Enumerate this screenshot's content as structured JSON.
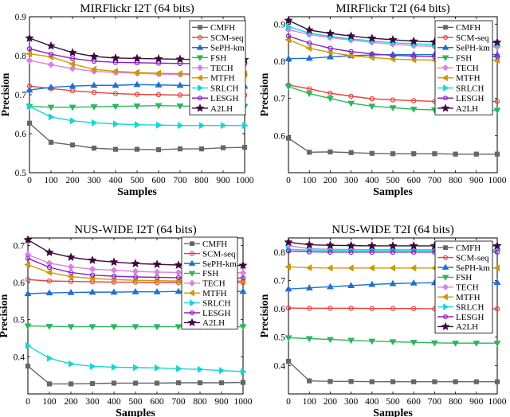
{
  "series_styles": [
    {
      "name": "CMFH",
      "color": "#666666",
      "marker": "square"
    },
    {
      "name": "SCM-seq",
      "color": "#e8413c",
      "marker": "circle"
    },
    {
      "name": "SePH-km",
      "color": "#1f6fd1",
      "marker": "triangle-up"
    },
    {
      "name": "FSH",
      "color": "#2db55d",
      "marker": "triangle-down"
    },
    {
      "name": "TECH",
      "color": "#d783e0",
      "marker": "diamond"
    },
    {
      "name": "MTFH",
      "color": "#cc9a06",
      "marker": "triangle-left"
    },
    {
      "name": "SRLCH",
      "color": "#15d6d6",
      "marker": "triangle-right"
    },
    {
      "name": "LESGH",
      "color": "#8a20c8",
      "marker": "circle"
    },
    {
      "name": "A2LH",
      "color": "#3c0a3c",
      "marker": "star"
    }
  ],
  "chart_data": [
    {
      "type": "line",
      "title": "MIRFlickr I2T (64 bits)",
      "xlabel": "Samples",
      "ylabel": "Precision",
      "x": [
        0,
        100,
        200,
        300,
        400,
        500,
        600,
        700,
        800,
        900,
        1000
      ],
      "xticks": [
        "0",
        "100",
        "200",
        "300",
        "400",
        "500",
        "600",
        "700",
        "800",
        "900",
        "1000"
      ],
      "ylim": [
        0.5,
        0.9
      ],
      "yticks": [
        "0.5",
        "0.6",
        "0.7",
        "0.8",
        "0.9"
      ],
      "legend": "top-right",
      "series": [
        {
          "name": "CMFH",
          "values": [
            0.627,
            0.578,
            0.571,
            0.563,
            0.56,
            0.56,
            0.559,
            0.561,
            0.561,
            0.564,
            0.565
          ]
        },
        {
          "name": "SCM-seq",
          "values": [
            0.722,
            0.716,
            0.71,
            0.706,
            0.703,
            0.701,
            0.7,
            0.699,
            0.699,
            0.699,
            0.699
          ]
        },
        {
          "name": "SePH-km",
          "values": [
            0.712,
            0.719,
            0.722,
            0.724,
            0.724,
            0.726,
            0.725,
            0.724,
            0.723,
            0.722,
            0.722
          ]
        },
        {
          "name": "FSH",
          "values": [
            0.67,
            0.668,
            0.668,
            0.669,
            0.67,
            0.671,
            0.672,
            0.671,
            0.67,
            0.67,
            0.67
          ]
        },
        {
          "name": "TECH",
          "values": [
            0.788,
            0.777,
            0.767,
            0.76,
            0.757,
            0.755,
            0.753,
            0.752,
            0.751,
            0.751,
            0.751
          ]
        },
        {
          "name": "MTFH",
          "values": [
            0.805,
            0.797,
            0.779,
            0.765,
            0.76,
            0.757,
            0.755,
            0.754,
            0.753,
            0.753,
            0.753
          ]
        },
        {
          "name": "SRLCH",
          "values": [
            0.67,
            0.643,
            0.633,
            0.628,
            0.625,
            0.623,
            0.622,
            0.621,
            0.621,
            0.621,
            0.621
          ]
        },
        {
          "name": "LESGH",
          "values": [
            0.818,
            0.804,
            0.793,
            0.786,
            0.783,
            0.782,
            0.781,
            0.78,
            0.78,
            0.78,
            0.78
          ]
        },
        {
          "name": "A2LH",
          "values": [
            0.845,
            0.825,
            0.808,
            0.798,
            0.794,
            0.793,
            0.792,
            0.791,
            0.79,
            0.79,
            0.79
          ]
        }
      ]
    },
    {
      "type": "line",
      "title": "MIRFlickr T2I (64 bits)",
      "xlabel": "Samples",
      "ylabel": "Precision",
      "x": [
        0,
        100,
        200,
        300,
        400,
        500,
        600,
        700,
        800,
        900,
        1000
      ],
      "xticks": [
        "0",
        "100",
        "200",
        "300",
        "400",
        "500",
        "600",
        "700",
        "800",
        "900",
        "1000"
      ],
      "ylim": [
        0.5,
        0.92
      ],
      "yticks": [
        "0.6",
        "0.7",
        "0.8",
        "0.9"
      ],
      "legend": "right",
      "series": [
        {
          "name": "CMFH",
          "values": [
            0.593,
            0.555,
            0.556,
            0.554,
            0.552,
            0.551,
            0.551,
            0.551,
            0.55,
            0.55,
            0.55
          ]
        },
        {
          "name": "SCM-seq",
          "values": [
            0.736,
            0.726,
            0.714,
            0.706,
            0.699,
            0.696,
            0.694,
            0.692,
            0.692,
            0.692,
            0.692
          ]
        },
        {
          "name": "SePH-km",
          "values": [
            0.807,
            0.808,
            0.812,
            0.815,
            0.817,
            0.818,
            0.818,
            0.818,
            0.818,
            0.818,
            0.818
          ]
        },
        {
          "name": "FSH",
          "values": [
            0.732,
            0.713,
            0.7,
            0.687,
            0.679,
            0.675,
            0.671,
            0.669,
            0.668,
            0.668,
            0.668
          ]
        },
        {
          "name": "TECH",
          "values": [
            0.885,
            0.872,
            0.864,
            0.857,
            0.851,
            0.846,
            0.842,
            0.84,
            0.839,
            0.839,
            0.839
          ]
        },
        {
          "name": "MTFH",
          "values": [
            0.858,
            0.835,
            0.824,
            0.815,
            0.81,
            0.806,
            0.804,
            0.803,
            0.803,
            0.803,
            0.803
          ]
        },
        {
          "name": "SRLCH",
          "values": [
            0.893,
            0.876,
            0.867,
            0.86,
            0.855,
            0.85,
            0.847,
            0.845,
            0.844,
            0.844,
            0.844
          ]
        },
        {
          "name": "LESGH",
          "values": [
            0.868,
            0.849,
            0.835,
            0.826,
            0.82,
            0.816,
            0.814,
            0.813,
            0.813,
            0.813,
            0.813
          ]
        },
        {
          "name": "A2LH",
          "values": [
            0.91,
            0.884,
            0.875,
            0.868,
            0.862,
            0.858,
            0.854,
            0.852,
            0.851,
            0.851,
            0.851
          ]
        }
      ]
    },
    {
      "type": "line",
      "title": "NUS-WIDE I2T (64 bits)",
      "xlabel": "Samples",
      "ylabel": "Precision",
      "x": [
        0,
        100,
        200,
        300,
        400,
        500,
        600,
        700,
        800,
        900,
        1000
      ],
      "xticks": [
        "0",
        "100",
        "200",
        "300",
        "400",
        "500",
        "600",
        "700",
        "800",
        "900",
        "1000"
      ],
      "ylim": [
        0.3,
        0.72
      ],
      "yticks": [
        "0.4",
        "0.5",
        "0.6",
        "0.7"
      ],
      "legend": "right",
      "series": [
        {
          "name": "CMFH",
          "values": [
            0.375,
            0.327,
            0.327,
            0.328,
            0.329,
            0.329,
            0.329,
            0.33,
            0.33,
            0.33,
            0.331
          ]
        },
        {
          "name": "SCM-seq",
          "values": [
            0.608,
            0.604,
            0.603,
            0.602,
            0.601,
            0.601,
            0.6,
            0.6,
            0.6,
            0.6,
            0.6
          ]
        },
        {
          "name": "SePH-km",
          "values": [
            0.57,
            0.572,
            0.573,
            0.574,
            0.574,
            0.575,
            0.575,
            0.576,
            0.576,
            0.576,
            0.576
          ]
        },
        {
          "name": "FSH",
          "values": [
            0.483,
            0.482,
            0.481,
            0.481,
            0.481,
            0.481,
            0.481,
            0.481,
            0.481,
            0.481,
            0.481
          ]
        },
        {
          "name": "TECH",
          "values": [
            0.675,
            0.652,
            0.642,
            0.636,
            0.633,
            0.63,
            0.628,
            0.627,
            0.626,
            0.626,
            0.626
          ]
        },
        {
          "name": "MTFH",
          "values": [
            0.648,
            0.627,
            0.616,
            0.611,
            0.608,
            0.606,
            0.605,
            0.604,
            0.604,
            0.604,
            0.604
          ]
        },
        {
          "name": "SRLCH",
          "values": [
            0.43,
            0.396,
            0.381,
            0.374,
            0.372,
            0.371,
            0.37,
            0.368,
            0.366,
            0.363,
            0.36
          ]
        },
        {
          "name": "LESGH",
          "values": [
            0.665,
            0.641,
            0.627,
            0.62,
            0.617,
            0.615,
            0.614,
            0.613,
            0.612,
            0.612,
            0.612
          ]
        },
        {
          "name": "A2LH",
          "values": [
            0.715,
            0.681,
            0.668,
            0.66,
            0.655,
            0.651,
            0.649,
            0.647,
            0.646,
            0.646,
            0.646
          ]
        }
      ]
    },
    {
      "type": "line",
      "title": "NUS-WIDE T2I (64 bits)",
      "xlabel": "Samples",
      "ylabel": "Precision",
      "x": [
        0,
        100,
        200,
        300,
        400,
        500,
        600,
        700,
        800,
        900,
        1000
      ],
      "xticks": [
        "0",
        "100",
        "200",
        "300",
        "400",
        "500",
        "600",
        "700",
        "800",
        "900",
        "1000"
      ],
      "ylim": [
        0.3,
        0.85
      ],
      "yticks": [
        "0.4",
        "0.5",
        "0.6",
        "0.7",
        "0.8"
      ],
      "legend": "right",
      "series": [
        {
          "name": "CMFH",
          "values": [
            0.415,
            0.346,
            0.344,
            0.344,
            0.343,
            0.343,
            0.343,
            0.343,
            0.343,
            0.343,
            0.343
          ]
        },
        {
          "name": "SCM-seq",
          "values": [
            0.603,
            0.602,
            0.602,
            0.602,
            0.601,
            0.601,
            0.601,
            0.6,
            0.6,
            0.6,
            0.6
          ]
        },
        {
          "name": "SePH-km",
          "values": [
            0.67,
            0.674,
            0.678,
            0.682,
            0.686,
            0.689,
            0.691,
            0.692,
            0.693,
            0.693,
            0.693
          ]
        },
        {
          "name": "FSH",
          "values": [
            0.498,
            0.495,
            0.492,
            0.489,
            0.486,
            0.484,
            0.482,
            0.48,
            0.479,
            0.479,
            0.479
          ]
        },
        {
          "name": "TECH",
          "values": [
            0.823,
            0.812,
            0.81,
            0.809,
            0.809,
            0.809,
            0.809,
            0.809,
            0.809,
            0.809,
            0.809
          ]
        },
        {
          "name": "MTFH",
          "values": [
            0.748,
            0.745,
            0.744,
            0.744,
            0.744,
            0.744,
            0.744,
            0.744,
            0.744,
            0.744,
            0.744
          ]
        },
        {
          "name": "SRLCH",
          "values": [
            0.81,
            0.807,
            0.806,
            0.806,
            0.806,
            0.806,
            0.806,
            0.806,
            0.806,
            0.806,
            0.806
          ]
        },
        {
          "name": "LESGH",
          "values": [
            0.804,
            0.801,
            0.8,
            0.8,
            0.8,
            0.8,
            0.8,
            0.8,
            0.8,
            0.8,
            0.8
          ]
        },
        {
          "name": "A2LH",
          "values": [
            0.835,
            0.826,
            0.824,
            0.823,
            0.822,
            0.822,
            0.822,
            0.822,
            0.822,
            0.822,
            0.822
          ]
        }
      ]
    }
  ]
}
